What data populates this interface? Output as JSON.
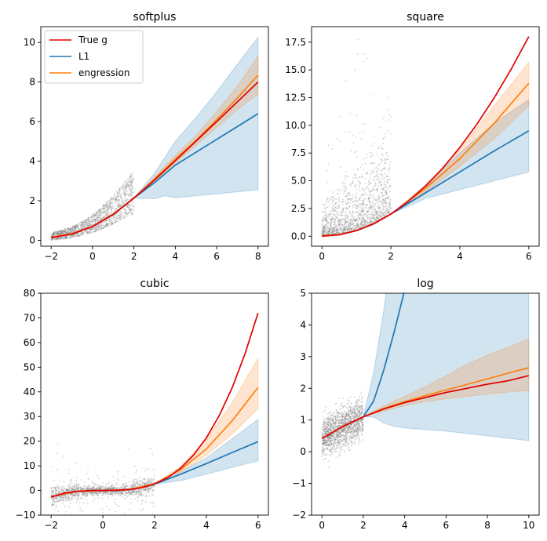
{
  "colors": {
    "true_g": "#e00000",
    "l1": "#1f77b4",
    "engression": "#ff7f0e",
    "scatter": "#808080"
  },
  "chart_data": [
    {
      "type": "line",
      "title": "softplus",
      "xlim": [
        -2.5,
        8.5
      ],
      "ylim": [
        -0.3,
        10.8
      ],
      "xticks": [
        -2,
        0,
        2,
        4,
        6,
        8
      ],
      "yticks": [
        0,
        2,
        4,
        6,
        8,
        10
      ],
      "ytick_labels": [
        "0",
        "2",
        "4",
        "6",
        "8",
        "10"
      ],
      "legend": {
        "location": "upper left",
        "entries": [
          "True g",
          "L1",
          "engression"
        ]
      },
      "scatter_region": {
        "x_range": [
          -2,
          2
        ]
      },
      "series": [
        {
          "name": "True g",
          "x": [
            -2,
            -1,
            0,
            1,
            2,
            3,
            4,
            5,
            6,
            7,
            8
          ],
          "y": [
            0.13,
            0.31,
            0.69,
            1.31,
            2.13,
            3.05,
            4.02,
            5.01,
            6.0,
            7.0,
            8.0
          ]
        },
        {
          "name": "L1",
          "x": [
            -2,
            -1,
            0,
            1,
            2,
            3,
            4,
            5,
            6,
            7,
            8
          ],
          "y": [
            0.13,
            0.33,
            0.7,
            1.3,
            2.13,
            2.92,
            3.8,
            4.45,
            5.1,
            5.75,
            6.4
          ]
        },
        {
          "name": "engression",
          "x": [
            -2,
            -1,
            0,
            1,
            2,
            3,
            4,
            5,
            6,
            7,
            8
          ],
          "y": [
            0.15,
            0.33,
            0.7,
            1.32,
            2.13,
            3.1,
            4.1,
            5.05,
            6.1,
            7.2,
            8.35
          ]
        }
      ],
      "bands": [
        {
          "name": "L1",
          "x": [
            2,
            3,
            3.5,
            4,
            5,
            6,
            7,
            8
          ],
          "lower": [
            2.13,
            2.1,
            2.25,
            2.15,
            2.25,
            2.35,
            2.45,
            2.55
          ],
          "upper": [
            2.13,
            3.4,
            4.2,
            5.0,
            6.2,
            7.5,
            8.9,
            10.25
          ]
        },
        {
          "name": "engression",
          "x": [
            2,
            3,
            4,
            5,
            6,
            7,
            8
          ],
          "lower": [
            2.13,
            3.0,
            3.9,
            4.8,
            5.7,
            6.6,
            7.4
          ],
          "upper": [
            2.13,
            3.2,
            4.3,
            5.3,
            6.5,
            7.8,
            9.3
          ]
        }
      ]
    },
    {
      "type": "line",
      "title": "square",
      "xlim": [
        -0.3,
        6.3
      ],
      "ylim": [
        -0.9,
        18.9
      ],
      "xticks": [
        0,
        2,
        4,
        6
      ],
      "yticks": [
        0,
        2.5,
        5,
        7.5,
        10,
        12.5,
        15,
        17.5
      ],
      "ytick_labels": [
        "0.0",
        "2.5",
        "5.0",
        "7.5",
        "10.0",
        "12.5",
        "15.0",
        "17.5"
      ],
      "scatter_region": {
        "x_range": [
          0,
          2
        ]
      },
      "series": [
        {
          "name": "True g",
          "x": [
            0,
            0.5,
            1,
            1.5,
            2,
            2.5,
            3,
            3.5,
            4,
            4.5,
            5,
            5.5,
            6
          ],
          "y": [
            0,
            0.125,
            0.5,
            1.125,
            2,
            3.125,
            4.5,
            6.125,
            8,
            10.125,
            12.5,
            15.125,
            18
          ]
        },
        {
          "name": "L1",
          "x": [
            0,
            0.5,
            1,
            1.5,
            2,
            3,
            4,
            5,
            6
          ],
          "y": [
            0.05,
            0.15,
            0.5,
            1.1,
            2.0,
            3.9,
            5.8,
            7.7,
            9.5
          ]
        },
        {
          "name": "engression",
          "x": [
            0,
            0.5,
            1,
            1.5,
            2,
            3,
            4,
            5,
            5.5,
            6
          ],
          "y": [
            0.05,
            0.15,
            0.5,
            1.15,
            2.0,
            4.3,
            7.0,
            10.2,
            12.0,
            13.8
          ]
        }
      ],
      "bands": [
        {
          "name": "L1",
          "x": [
            2,
            3,
            4,
            5,
            6
          ],
          "lower": [
            2.0,
            3.4,
            4.2,
            5.0,
            5.8
          ],
          "upper": [
            2.0,
            4.6,
            7.5,
            10.2,
            12.3
          ]
        },
        {
          "name": "engression",
          "x": [
            2,
            3,
            4,
            5,
            6
          ],
          "lower": [
            2.0,
            4.0,
            6.3,
            8.8,
            11.8
          ],
          "upper": [
            2.0,
            4.6,
            7.8,
            11.8,
            15.7
          ]
        }
      ]
    },
    {
      "type": "line",
      "title": "cubic",
      "xlim": [
        -2.4,
        6.4
      ],
      "ylim": [
        -10,
        80
      ],
      "xticks": [
        -2,
        0,
        2,
        4,
        6
      ],
      "yticks": [
        -10,
        0,
        10,
        20,
        30,
        40,
        50,
        60,
        70,
        80
      ],
      "ytick_labels": [
        "−10",
        "0",
        "10",
        "20",
        "30",
        "40",
        "50",
        "60",
        "70",
        "80"
      ],
      "scatter_region": {
        "x_range": [
          -2,
          2
        ]
      },
      "series": [
        {
          "name": "True g",
          "x": [
            -2,
            -1.5,
            -1,
            -0.5,
            0,
            0.5,
            1,
            1.5,
            2,
            2.5,
            3,
            3.5,
            4,
            4.5,
            5,
            5.5,
            6
          ],
          "y": [
            -2.67,
            -1.125,
            -0.33,
            -0.04,
            0,
            0.04,
            0.33,
            1.125,
            2.67,
            5.2,
            9.0,
            14.3,
            21.3,
            30.4,
            41.7,
            55.5,
            72
          ]
        },
        {
          "name": "L1",
          "x": [
            -2,
            -1,
            0,
            1,
            2,
            3,
            4,
            5,
            6
          ],
          "y": [
            -2.5,
            -0.4,
            0,
            0.4,
            2.6,
            6.6,
            10.9,
            15.4,
            19.8
          ]
        },
        {
          "name": "engression",
          "x": [
            -2,
            -1,
            0,
            1,
            2,
            3,
            4,
            5,
            6
          ],
          "y": [
            -2.5,
            -0.4,
            0,
            0.4,
            2.7,
            8.4,
            16.8,
            28.3,
            41.8
          ]
        }
      ],
      "bands": [
        {
          "name": "L1",
          "x": [
            2,
            3,
            4,
            5,
            6
          ],
          "lower": [
            2.6,
            4.0,
            6.6,
            9.4,
            12.0
          ],
          "upper": [
            2.6,
            7.6,
            13.2,
            21.0,
            28.8
          ]
        },
        {
          "name": "engression",
          "x": [
            2,
            3,
            4,
            5,
            6
          ],
          "lower": [
            2.7,
            7.5,
            14.3,
            22.9,
            33.2
          ],
          "upper": [
            2.7,
            9.7,
            20.6,
            35.6,
            53.7
          ]
        }
      ]
    },
    {
      "type": "line",
      "title": "log",
      "xlim": [
        -0.5,
        10.5
      ],
      "ylim": [
        -2,
        5
      ],
      "xticks": [
        0,
        2,
        4,
        6,
        8,
        10
      ],
      "yticks": [
        -2,
        -1,
        0,
        1,
        2,
        3,
        4,
        5
      ],
      "ytick_labels": [
        "−2",
        "−1",
        "0",
        "1",
        "2",
        "3",
        "4",
        "5"
      ],
      "scatter_region": {
        "x_range": [
          0,
          2
        ]
      },
      "series": [
        {
          "name": "True g",
          "x": [
            0,
            1,
            2,
            3,
            4,
            5,
            6,
            7,
            8,
            9,
            10
          ],
          "y": [
            0.41,
            0.79,
            1.1,
            1.35,
            1.55,
            1.71,
            1.87,
            2.0,
            2.13,
            2.24,
            2.4
          ]
        },
        {
          "name": "L1",
          "x": [
            0,
            1,
            2,
            2.5,
            3,
            3.5,
            4,
            4.5
          ],
          "y": [
            0.42,
            0.8,
            1.1,
            1.6,
            2.6,
            3.8,
            5.1,
            6.5
          ]
        },
        {
          "name": "engression",
          "x": [
            0,
            1,
            2,
            3,
            4,
            5,
            6,
            7,
            8,
            9,
            10
          ],
          "y": [
            0.42,
            0.8,
            1.1,
            1.37,
            1.58,
            1.77,
            1.95,
            2.12,
            2.3,
            2.48,
            2.65
          ]
        }
      ],
      "bands": [
        {
          "name": "L1",
          "x": [
            2,
            2.5,
            3,
            3.5,
            4,
            6,
            8,
            10
          ],
          "lower": [
            1.1,
            1.1,
            0.9,
            0.8,
            0.75,
            0.65,
            0.5,
            0.35
          ],
          "upper": [
            1.1,
            2.5,
            4.5,
            7,
            9,
            9,
            9,
            9
          ]
        },
        {
          "name": "engression",
          "x": [
            2,
            3,
            4,
            5,
            6,
            7,
            8,
            9,
            10
          ],
          "lower": [
            1.1,
            1.28,
            1.45,
            1.58,
            1.67,
            1.75,
            1.82,
            1.88,
            1.93
          ],
          "upper": [
            1.1,
            1.45,
            1.75,
            2.05,
            2.4,
            2.75,
            3.05,
            3.3,
            3.55
          ]
        }
      ]
    }
  ]
}
